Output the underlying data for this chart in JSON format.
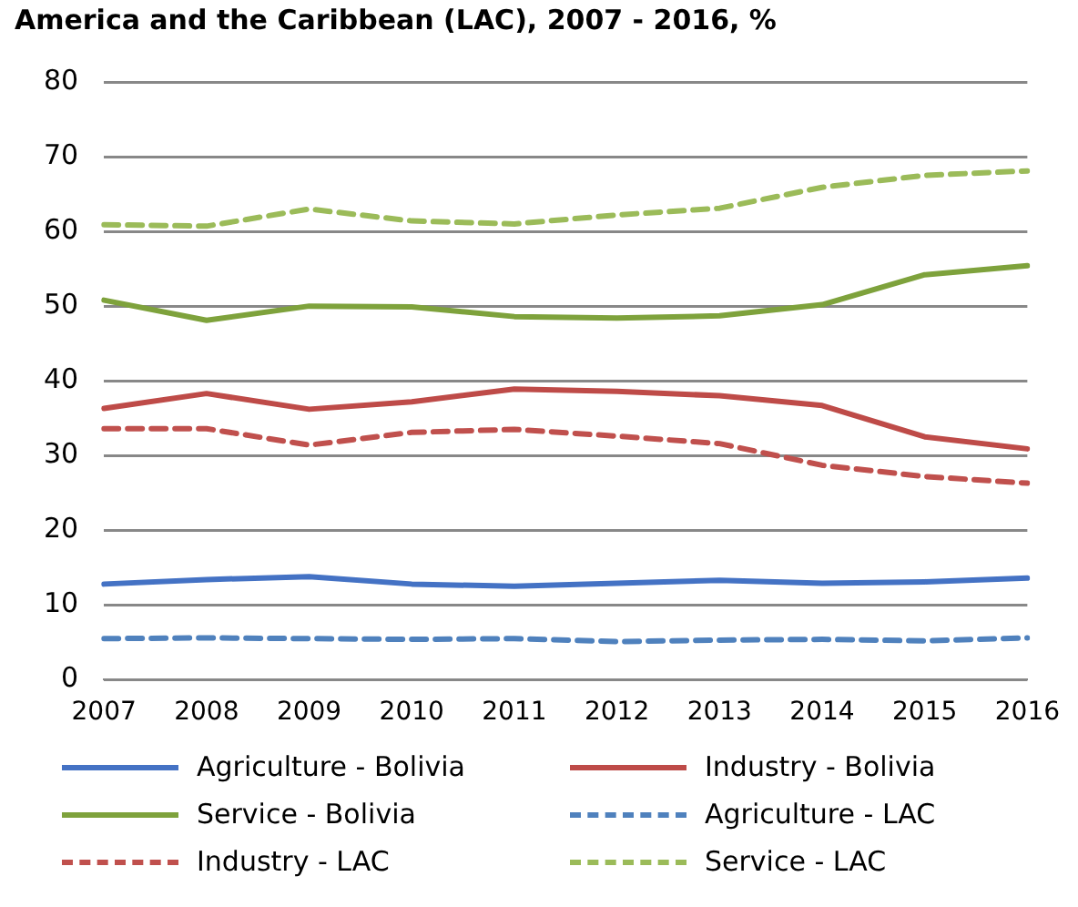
{
  "chart_data": {
    "type": "line",
    "title": "America and the Caribbean (LAC), 2007 - 2016, %",
    "categories": [
      "2007",
      "2008",
      "2009",
      "2010",
      "2011",
      "2012",
      "2013",
      "2014",
      "2015",
      "2016"
    ],
    "ylim": [
      0,
      80
    ],
    "yticks": [
      0,
      10,
      20,
      30,
      40,
      50,
      60,
      70,
      80
    ],
    "grid": "y",
    "legend": "bottom",
    "marker": "none",
    "series": [
      {
        "name": "Agriculture - Bolivia",
        "color": "#4472c4",
        "line_style": "solid",
        "values": [
          12.8,
          13.4,
          13.8,
          12.8,
          12.5,
          12.9,
          13.3,
          12.9,
          13.1,
          13.6
        ]
      },
      {
        "name": "Industry - Bolivia",
        "color": "#be4b48",
        "line_style": "solid",
        "values": [
          36.3,
          38.3,
          36.2,
          37.2,
          38.9,
          38.6,
          38.0,
          36.7,
          32.5,
          30.9
        ]
      },
      {
        "name": "Service - Bolivia",
        "color": "#7ea23c",
        "line_style": "solid",
        "values": [
          50.8,
          48.1,
          50.0,
          49.9,
          48.6,
          48.4,
          48.7,
          50.2,
          54.2,
          55.4
        ]
      },
      {
        "name": "Agriculture - LAC",
        "color": "#4f81bd",
        "line_style": "dashed",
        "values": [
          5.5,
          5.6,
          5.5,
          5.4,
          5.5,
          5.1,
          5.3,
          5.4,
          5.2,
          5.6
        ]
      },
      {
        "name": "Industry - LAC",
        "color": "#c0504d",
        "line_style": "dashed",
        "values": [
          33.6,
          33.6,
          31.4,
          33.1,
          33.5,
          32.6,
          31.6,
          28.7,
          27.2,
          26.3
        ]
      },
      {
        "name": "Service - LAC",
        "color": "#9bbb59",
        "line_style": "dashed",
        "values": [
          60.9,
          60.7,
          63.0,
          61.4,
          61.0,
          62.2,
          63.1,
          65.9,
          67.5,
          68.1
        ]
      }
    ]
  }
}
